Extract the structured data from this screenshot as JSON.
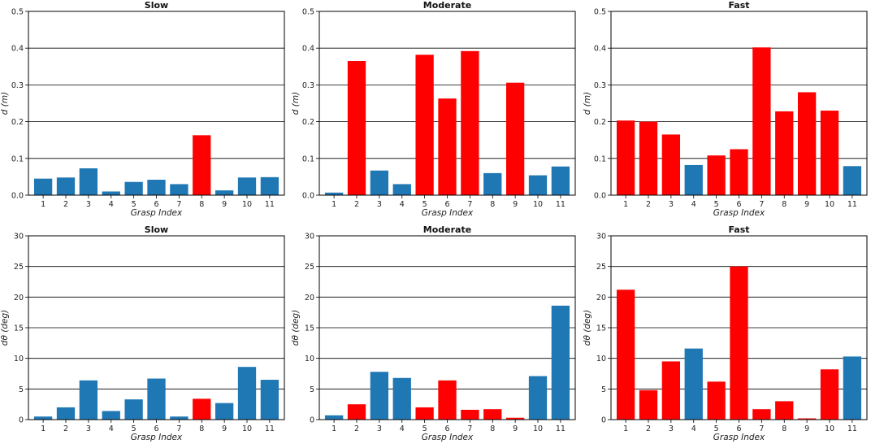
{
  "chart_data": [
    {
      "type": "bar",
      "title": "Slow",
      "xlabel": "Grasp Index",
      "ylabel": "d (m)",
      "categories": [
        "1",
        "2",
        "3",
        "4",
        "5",
        "6",
        "7",
        "8",
        "9",
        "10",
        "11"
      ],
      "values": [
        0.045,
        0.048,
        0.073,
        0.01,
        0.036,
        0.042,
        0.03,
        0.163,
        0.013,
        0.048,
        0.049
      ],
      "colors": [
        "#1f77b4",
        "#1f77b4",
        "#1f77b4",
        "#1f77b4",
        "#1f77b4",
        "#1f77b4",
        "#1f77b4",
        "#ff0000",
        "#1f77b4",
        "#1f77b4",
        "#1f77b4"
      ],
      "ylim": [
        0,
        0.5
      ],
      "yticks": [
        0.0,
        0.1,
        0.2,
        0.3,
        0.4,
        0.5
      ],
      "ytick_labels": [
        "0.0",
        "0.1",
        "0.2",
        "0.3",
        "0.4",
        "0.5"
      ],
      "grid": true
    },
    {
      "type": "bar",
      "title": "Moderate",
      "xlabel": "Grasp Index",
      "ylabel": "d (m)",
      "categories": [
        "1",
        "2",
        "3",
        "4",
        "5",
        "6",
        "7",
        "8",
        "9",
        "10",
        "11"
      ],
      "values": [
        0.007,
        0.365,
        0.067,
        0.03,
        0.382,
        0.263,
        0.392,
        0.06,
        0.306,
        0.054,
        0.078
      ],
      "colors": [
        "#1f77b4",
        "#ff0000",
        "#1f77b4",
        "#1f77b4",
        "#ff0000",
        "#ff0000",
        "#ff0000",
        "#1f77b4",
        "#ff0000",
        "#1f77b4",
        "#1f77b4"
      ],
      "ylim": [
        0,
        0.5
      ],
      "yticks": [
        0.0,
        0.1,
        0.2,
        0.3,
        0.4,
        0.5
      ],
      "ytick_labels": [
        "0.0",
        "0.1",
        "0.2",
        "0.3",
        "0.4",
        "0.5"
      ],
      "grid": true
    },
    {
      "type": "bar",
      "title": "Fast",
      "xlabel": "Grasp Index",
      "ylabel": "d (m)",
      "categories": [
        "1",
        "2",
        "3",
        "4",
        "5",
        "6",
        "7",
        "8",
        "9",
        "10",
        "11"
      ],
      "values": [
        0.203,
        0.2,
        0.165,
        0.082,
        0.108,
        0.125,
        0.402,
        0.228,
        0.28,
        0.23,
        0.079
      ],
      "colors": [
        "#ff0000",
        "#ff0000",
        "#ff0000",
        "#1f77b4",
        "#ff0000",
        "#ff0000",
        "#ff0000",
        "#ff0000",
        "#ff0000",
        "#ff0000",
        "#1f77b4"
      ],
      "ylim": [
        0,
        0.5
      ],
      "yticks": [
        0.0,
        0.1,
        0.2,
        0.3,
        0.4,
        0.5
      ],
      "ytick_labels": [
        "0.0",
        "0.1",
        "0.2",
        "0.3",
        "0.4",
        "0.5"
      ],
      "grid": true
    },
    {
      "type": "bar",
      "title": "Slow",
      "xlabel": "Grasp Index",
      "ylabel": "dθ (deg)",
      "categories": [
        "1",
        "2",
        "3",
        "4",
        "5",
        "6",
        "7",
        "8",
        "9",
        "10",
        "11"
      ],
      "values": [
        0.5,
        2.0,
        6.4,
        1.4,
        3.3,
        6.7,
        0.5,
        3.4,
        2.7,
        8.6,
        6.5
      ],
      "colors": [
        "#1f77b4",
        "#1f77b4",
        "#1f77b4",
        "#1f77b4",
        "#1f77b4",
        "#1f77b4",
        "#1f77b4",
        "#ff0000",
        "#1f77b4",
        "#1f77b4",
        "#1f77b4"
      ],
      "ylim": [
        0,
        30
      ],
      "yticks": [
        0,
        5,
        10,
        15,
        20,
        25,
        30
      ],
      "ytick_labels": [
        "0",
        "5",
        "10",
        "15",
        "20",
        "25",
        "30"
      ],
      "grid": true
    },
    {
      "type": "bar",
      "title": "Moderate",
      "xlabel": "Grasp Index",
      "ylabel": "dθ (deg)",
      "categories": [
        "1",
        "2",
        "3",
        "4",
        "5",
        "6",
        "7",
        "8",
        "9",
        "10",
        "11"
      ],
      "values": [
        0.7,
        2.5,
        7.8,
        6.8,
        2.0,
        6.4,
        1.6,
        1.7,
        0.3,
        7.1,
        18.6
      ],
      "colors": [
        "#1f77b4",
        "#ff0000",
        "#1f77b4",
        "#1f77b4",
        "#ff0000",
        "#ff0000",
        "#ff0000",
        "#ff0000",
        "#ff0000",
        "#1f77b4",
        "#1f77b4"
      ],
      "ylim": [
        0,
        30
      ],
      "yticks": [
        0,
        5,
        10,
        15,
        20,
        25,
        30
      ],
      "ytick_labels": [
        "0",
        "5",
        "10",
        "15",
        "20",
        "25",
        "30"
      ],
      "grid": true
    },
    {
      "type": "bar",
      "title": "Fast",
      "xlabel": "Grasp Index",
      "ylabel": "dθ (deg)",
      "categories": [
        "1",
        "2",
        "3",
        "4",
        "5",
        "6",
        "7",
        "8",
        "9",
        "10",
        "11"
      ],
      "values": [
        21.2,
        4.8,
        9.5,
        11.6,
        6.2,
        25.0,
        1.7,
        3.0,
        0.2,
        8.2,
        10.3
      ],
      "colors": [
        "#ff0000",
        "#ff0000",
        "#ff0000",
        "#1f77b4",
        "#ff0000",
        "#ff0000",
        "#ff0000",
        "#ff0000",
        "#ff0000",
        "#ff0000",
        "#1f77b4"
      ],
      "ylim": [
        0,
        30
      ],
      "yticks": [
        0,
        5,
        10,
        15,
        20,
        25,
        30
      ],
      "ytick_labels": [
        "0",
        "5",
        "10",
        "15",
        "20",
        "25",
        "30"
      ],
      "grid": true
    }
  ]
}
